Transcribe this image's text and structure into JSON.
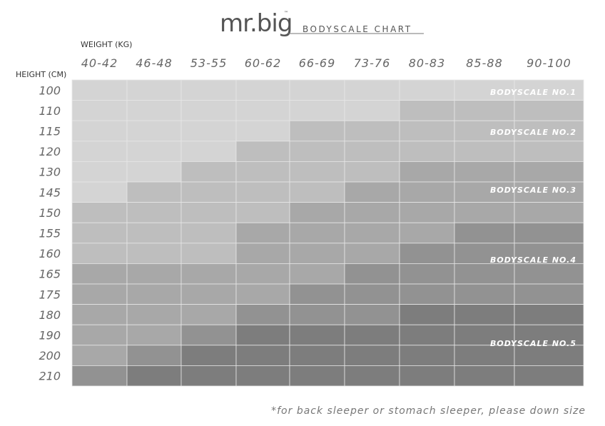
{
  "header": {
    "logo": "mr.big",
    "trademark": "™",
    "title": "BODYSCALE CHART"
  },
  "table": {
    "weight_label": "WEIGHT (KG)",
    "height_label": "HEIGHT (CM)",
    "weights": [
      "40-42",
      "46-48",
      "53-55",
      "60-62",
      "66-69",
      "73-76",
      "80-83",
      "85-88",
      "90-100"
    ],
    "heights": [
      "100",
      "110",
      "115",
      "120",
      "130",
      "145",
      "150",
      "155",
      "160",
      "165",
      "175",
      "180",
      "190",
      "200",
      "210"
    ],
    "levels": [
      [
        1,
        1,
        1,
        1,
        1,
        1,
        1,
        1,
        1
      ],
      [
        1,
        1,
        1,
        1,
        1,
        1,
        2,
        2,
        2
      ],
      [
        1,
        1,
        1,
        1,
        2,
        2,
        2,
        2,
        2
      ],
      [
        1,
        1,
        1,
        2,
        2,
        2,
        2,
        2,
        2
      ],
      [
        1,
        1,
        2,
        2,
        2,
        2,
        3,
        3,
        3
      ],
      [
        1,
        2,
        2,
        2,
        2,
        3,
        3,
        3,
        3
      ],
      [
        2,
        2,
        2,
        2,
        3,
        3,
        3,
        3,
        3
      ],
      [
        2,
        2,
        2,
        3,
        3,
        3,
        3,
        4,
        4
      ],
      [
        2,
        2,
        2,
        3,
        3,
        3,
        4,
        4,
        4
      ],
      [
        3,
        3,
        3,
        3,
        3,
        4,
        4,
        4,
        4
      ],
      [
        3,
        3,
        3,
        3,
        4,
        4,
        4,
        4,
        4
      ],
      [
        3,
        3,
        3,
        4,
        4,
        4,
        5,
        5,
        5
      ],
      [
        3,
        3,
        4,
        5,
        5,
        5,
        5,
        5,
        5
      ],
      [
        3,
        4,
        5,
        5,
        5,
        5,
        5,
        5,
        5
      ],
      [
        4,
        5,
        5,
        5,
        5,
        5,
        5,
        5,
        5
      ]
    ],
    "level_colors": [
      "#d4d4d4",
      "#bebebe",
      "#a8a8a8",
      "#929292",
      "#7d7d7d"
    ],
    "scale_labels": [
      "BODYSCALE NO.1",
      "BODYSCALE NO.2",
      "BODYSCALE NO.3",
      "BODYSCALE NO.4",
      "BODYSCALE NO.5"
    ]
  },
  "footnote": "*for back sleeper or stomach sleeper, please down size"
}
